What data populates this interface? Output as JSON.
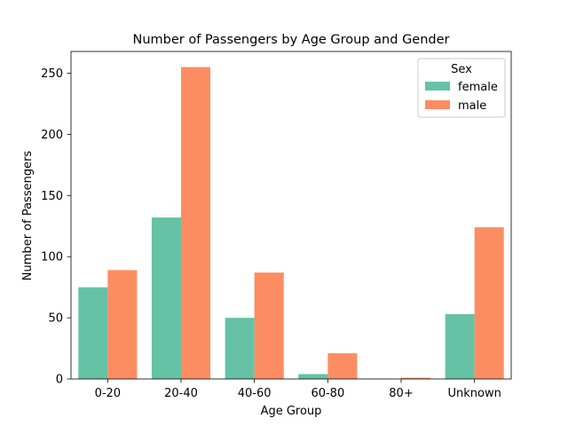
{
  "chart_data": {
    "type": "bar",
    "title": "Number of Passengers by Age Group and Gender",
    "xlabel": "Age Group",
    "ylabel": "Number of Passengers",
    "categories": [
      "0-20",
      "20-40",
      "40-60",
      "60-80",
      "80+",
      "Unknown"
    ],
    "series": [
      {
        "name": "female",
        "values": [
          75,
          132,
          50,
          4,
          0,
          53
        ],
        "color": "#66c2a5"
      },
      {
        "name": "male",
        "values": [
          89,
          255,
          87,
          21,
          1,
          124
        ],
        "color": "#fc8d62"
      }
    ],
    "ylim": [
      0,
      267.75
    ],
    "yticks": [
      0,
      50,
      100,
      150,
      200,
      250
    ],
    "legend": {
      "title": "Sex",
      "placement": "top-right"
    },
    "grid": false
  }
}
